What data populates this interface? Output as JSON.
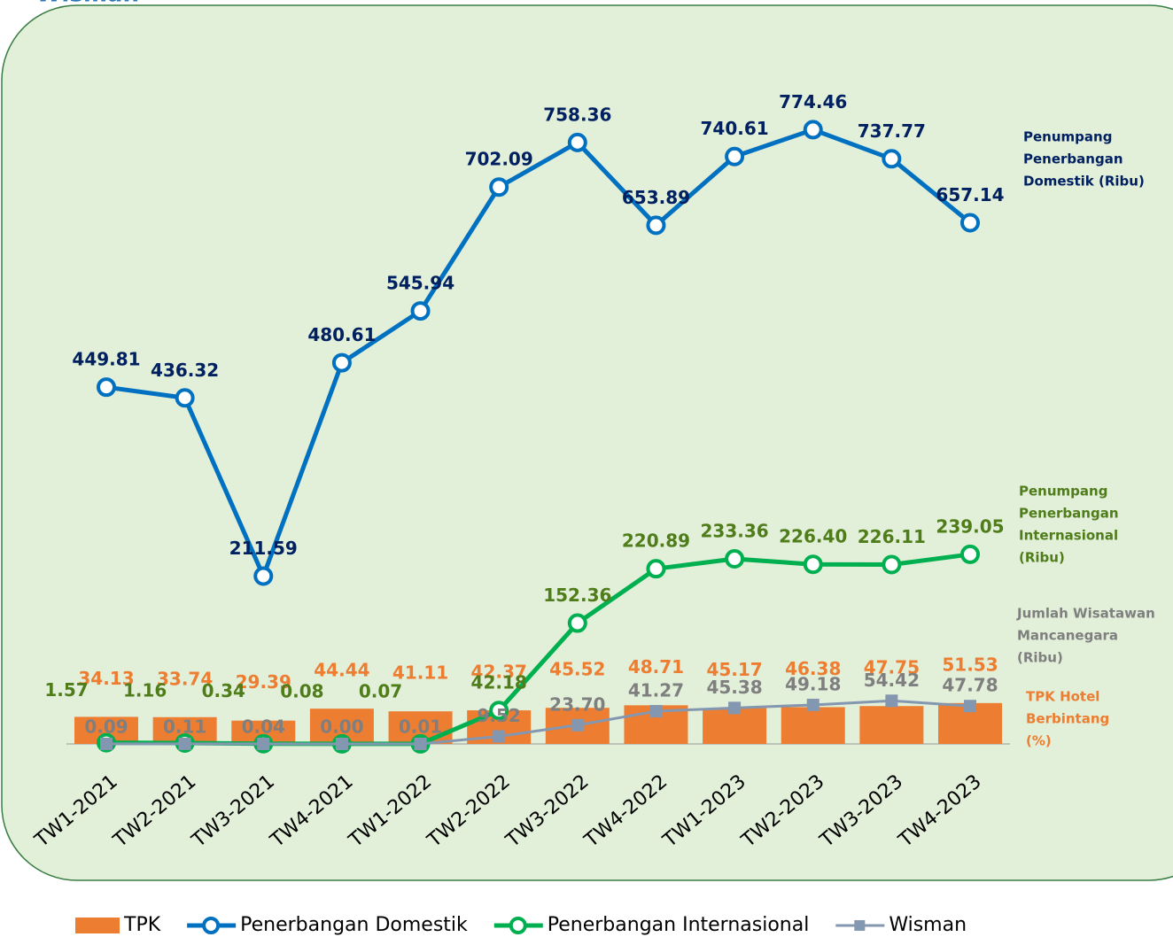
{
  "chart_data": {
    "type": "combo",
    "title": "Wisman",
    "categories": [
      "TW1-2021",
      "TW2-2021",
      "TW3-2021",
      "TW4-2021",
      "TW1-2022",
      "TW2-2022",
      "TW3-2022",
      "TW4-2022",
      "TW1-2023",
      "TW2-2023",
      "TW3-2023",
      "TW4-2023"
    ],
    "ylim": [
      0,
      900
    ],
    "series": [
      {
        "name": "TPK",
        "kind": "bar",
        "color": "#ed7d31",
        "label_color": "#ed7d31",
        "values": [
          34.13,
          33.74,
          29.39,
          44.44,
          41.11,
          42.37,
          45.52,
          48.71,
          45.17,
          46.38,
          47.75,
          51.53
        ]
      },
      {
        "name": "Penerbangan Domestik",
        "kind": "line",
        "color": "#0070c0",
        "label_color": "#002060",
        "values": [
          449.81,
          436.32,
          211.59,
          480.61,
          545.94,
          702.09,
          758.36,
          653.89,
          740.61,
          774.46,
          737.77,
          657.14
        ]
      },
      {
        "name": "Penerbangan Internasional",
        "kind": "line",
        "color": "#00b050",
        "label_color": "#4f7d1a",
        "values": [
          1.57,
          1.16,
          0.34,
          0.08,
          0.07,
          42.18,
          152.36,
          220.89,
          233.36,
          226.4,
          226.11,
          239.05
        ],
        "value_labels": [
          "1.57",
          "1.16",
          "0.34",
          "0.08",
          "0.07",
          "42.18",
          "152.36",
          "220.89",
          "233.36",
          "226.40",
          "226.11",
          "239.05"
        ]
      },
      {
        "name": "Wisman",
        "kind": "square-line",
        "color": "#8497b0",
        "label_color": "#7f7f7f",
        "values": [
          0.09,
          0.11,
          0.04,
          0,
          0.01,
          9.52,
          23.7,
          41.27,
          45.38,
          49.18,
          54.42,
          47.78
        ],
        "value_labels": [
          "0.09",
          "0.11",
          "0.04",
          "0.00",
          "0.01",
          "9.52",
          "23.70",
          "41.27",
          "45.38",
          "49.18",
          "54.42",
          "47.78"
        ]
      }
    ],
    "annotations": [
      {
        "lines": [
          "Penumpang",
          "Penerbangan",
          "Domestik (Ribu)"
        ],
        "color": "#002060"
      },
      {
        "lines": [
          "Penumpang",
          "Penerbangan",
          "Internasional",
          "(Ribu)"
        ],
        "color": "#4f7d1a"
      },
      {
        "lines": [
          "Jumlah Wisatawan",
          "Mancanegara",
          "(Ribu)"
        ],
        "color": "#7f7f7f"
      },
      {
        "lines": [
          "TPK Hotel",
          "Berbintang",
          "(%)"
        ],
        "color": "#ed7d31"
      }
    ]
  }
}
